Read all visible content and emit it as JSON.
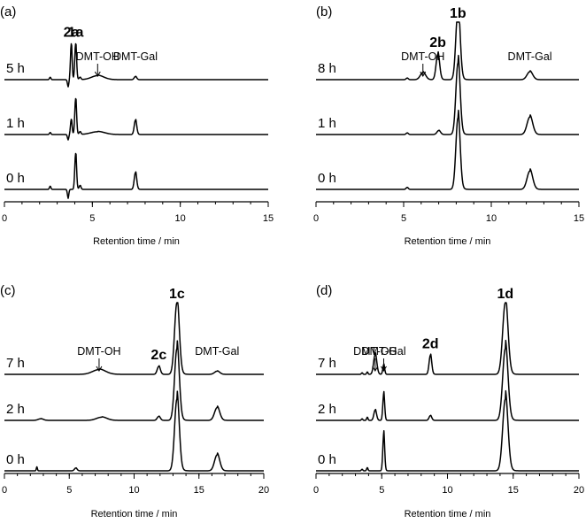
{
  "chart_data": [
    {
      "type": "line",
      "panel_label": "(a)",
      "xlabel": "Retention time / min",
      "xlim": [
        0,
        15
      ],
      "xticks": [
        0,
        5,
        10,
        15
      ],
      "traces": [
        {
          "name": "5 h",
          "baseline_min": [
            0,
            3.3
          ],
          "peaks": [
            {
              "x": 2.6,
              "h": 0.3,
              "w": 0.04
            },
            {
              "x": 3.62,
              "h": -0.8,
              "w": 0.04
            },
            {
              "x": 3.8,
              "h": 4.5,
              "w": 0.045
            },
            {
              "x": 4.05,
              "h": 4.5,
              "w": 0.05
            },
            {
              "x": 4.3,
              "h": 0.3,
              "w": 0.05
            },
            {
              "x": 5.3,
              "h": 0.5,
              "w": 0.35
            },
            {
              "x": 7.45,
              "h": 0.4,
              "w": 0.07
            }
          ]
        },
        {
          "name": "1 h",
          "peaks": [
            {
              "x": 2.6,
              "h": 0.25,
              "w": 0.04
            },
            {
              "x": 3.62,
              "h": -0.6,
              "w": 0.04
            },
            {
              "x": 3.8,
              "h": 1.9,
              "w": 0.045
            },
            {
              "x": 4.05,
              "h": 4.5,
              "w": 0.05
            },
            {
              "x": 4.3,
              "h": 0.35,
              "w": 0.05
            },
            {
              "x": 5.3,
              "h": 0.35,
              "w": 0.4
            },
            {
              "x": 7.45,
              "h": 1.8,
              "w": 0.07
            }
          ]
        },
        {
          "name": "0 h",
          "peaks": [
            {
              "x": 2.6,
              "h": 0.4,
              "w": 0.04
            },
            {
              "x": 3.62,
              "h": -1.0,
              "w": 0.04
            },
            {
              "x": 4.05,
              "h": 4.5,
              "w": 0.05
            },
            {
              "x": 4.3,
              "h": 0.5,
              "w": 0.05
            },
            {
              "x": 7.45,
              "h": 2.1,
              "w": 0.07
            }
          ]
        }
      ],
      "annotations": [
        {
          "text": "2a",
          "bold": true,
          "x": 3.8
        },
        {
          "text": "1a",
          "bold": true,
          "x": 4.05
        },
        {
          "text": "DMT-OH",
          "bold": false,
          "x": 5.3,
          "arrow": true
        },
        {
          "text": "DMT-Gal",
          "bold": false,
          "x": 7.45
        }
      ]
    },
    {
      "type": "line",
      "panel_label": "(b)",
      "xlabel": "Retention time / min",
      "xlim": [
        0,
        15
      ],
      "xticks": [
        0,
        5,
        10,
        15
      ],
      "traces": [
        {
          "name": "8 h",
          "peaks": [
            {
              "x": 5.2,
              "h": 0.2,
              "w": 0.06
            },
            {
              "x": 6.1,
              "h": 0.9,
              "w": 0.15
            },
            {
              "x": 6.95,
              "h": 3.2,
              "w": 0.1
            },
            {
              "x": 8.1,
              "h": 9.0,
              "w": 0.12
            },
            {
              "x": 12.2,
              "h": 1.0,
              "w": 0.16
            }
          ]
        },
        {
          "name": "1 h",
          "peaks": [
            {
              "x": 5.2,
              "h": 0.2,
              "w": 0.06
            },
            {
              "x": 7.0,
              "h": 0.5,
              "w": 0.1
            },
            {
              "x": 8.1,
              "h": 9.0,
              "w": 0.12
            },
            {
              "x": 12.2,
              "h": 2.2,
              "w": 0.16
            }
          ]
        },
        {
          "name": "0 h",
          "peaks": [
            {
              "x": 5.2,
              "h": 0.25,
              "w": 0.06
            },
            {
              "x": 8.1,
              "h": 9.0,
              "w": 0.12
            },
            {
              "x": 12.2,
              "h": 2.3,
              "w": 0.16
            }
          ]
        }
      ],
      "annotations": [
        {
          "text": "DMT-OH",
          "bold": false,
          "x": 6.1,
          "arrow": true
        },
        {
          "text": "2b",
          "bold": true,
          "x": 6.95
        },
        {
          "text": "1b",
          "bold": true,
          "x": 8.1
        },
        {
          "text": "DMT-Gal",
          "bold": false,
          "x": 12.2
        }
      ]
    },
    {
      "type": "line",
      "panel_label": "(c)",
      "xlabel": "Retention time / min",
      "xlim": [
        0,
        20
      ],
      "xticks": [
        0,
        5,
        10,
        15,
        20
      ],
      "traces": [
        {
          "name": "7 h",
          "peaks": [
            {
              "x": 7.3,
              "h": 0.6,
              "w": 0.5
            },
            {
              "x": 11.9,
              "h": 1.0,
              "w": 0.12
            },
            {
              "x": 13.3,
              "h": 9.0,
              "w": 0.18
            },
            {
              "x": 16.4,
              "h": 0.4,
              "w": 0.2
            }
          ]
        },
        {
          "name": "2 h",
          "peaks": [
            {
              "x": 2.8,
              "h": 0.2,
              "w": 0.2
            },
            {
              "x": 7.5,
              "h": 0.4,
              "w": 0.4
            },
            {
              "x": 11.9,
              "h": 0.5,
              "w": 0.12
            },
            {
              "x": 13.3,
              "h": 9.0,
              "w": 0.18
            },
            {
              "x": 16.4,
              "h": 1.6,
              "w": 0.2
            }
          ]
        },
        {
          "name": "0 h",
          "peaks": [
            {
              "x": 2.5,
              "h": 0.5,
              "w": 0.04
            },
            {
              "x": 5.5,
              "h": 0.35,
              "w": 0.1
            },
            {
              "x": 13.3,
              "h": 9.0,
              "w": 0.18
            },
            {
              "x": 16.4,
              "h": 2.0,
              "w": 0.2
            }
          ]
        }
      ],
      "annotations": [
        {
          "text": "DMT-OH",
          "bold": false,
          "x": 7.3,
          "arrow": true
        },
        {
          "text": "2c",
          "bold": true,
          "x": 11.9
        },
        {
          "text": "1c",
          "bold": true,
          "x": 13.3
        },
        {
          "text": "DMT-Gal",
          "bold": false,
          "x": 16.4
        }
      ]
    },
    {
      "type": "line",
      "panel_label": "(d)",
      "xlabel": "Retention time / min",
      "xlim": [
        0,
        20
      ],
      "xticks": [
        0,
        5,
        10,
        15,
        20
      ],
      "traces": [
        {
          "name": "7 h",
          "peaks": [
            {
              "x": 3.5,
              "h": 0.2,
              "w": 0.05
            },
            {
              "x": 3.9,
              "h": 0.3,
              "w": 0.05
            },
            {
              "x": 4.5,
              "h": 2.5,
              "w": 0.12
            },
            {
              "x": 5.15,
              "h": 1.2,
              "w": 0.07
            },
            {
              "x": 8.7,
              "h": 2.4,
              "w": 0.1
            },
            {
              "x": 14.4,
              "h": 9.0,
              "w": 0.2
            }
          ]
        },
        {
          "name": "2 h",
          "peaks": [
            {
              "x": 3.5,
              "h": 0.2,
              "w": 0.05
            },
            {
              "x": 3.9,
              "h": 0.4,
              "w": 0.05
            },
            {
              "x": 4.5,
              "h": 1.3,
              "w": 0.1
            },
            {
              "x": 5.15,
              "h": 3.3,
              "w": 0.07
            },
            {
              "x": 8.7,
              "h": 0.6,
              "w": 0.1
            },
            {
              "x": 14.4,
              "h": 9.0,
              "w": 0.2
            }
          ]
        },
        {
          "name": "0 h",
          "peaks": [
            {
              "x": 3.5,
              "h": 0.2,
              "w": 0.05
            },
            {
              "x": 3.9,
              "h": 0.4,
              "w": 0.05
            },
            {
              "x": 5.15,
              "h": 4.6,
              "w": 0.07
            },
            {
              "x": 14.4,
              "h": 9.0,
              "w": 0.2
            }
          ]
        }
      ],
      "annotations": [
        {
          "text": "DMT-OH",
          "bold": false,
          "x": 4.5,
          "arrow": true
        },
        {
          "text": "DMT-Gal",
          "bold": false,
          "x": 5.15,
          "arrow": true
        },
        {
          "text": "2d",
          "bold": true,
          "x": 8.7
        },
        {
          "text": "1d",
          "bold": true,
          "x": 14.4
        }
      ]
    }
  ]
}
